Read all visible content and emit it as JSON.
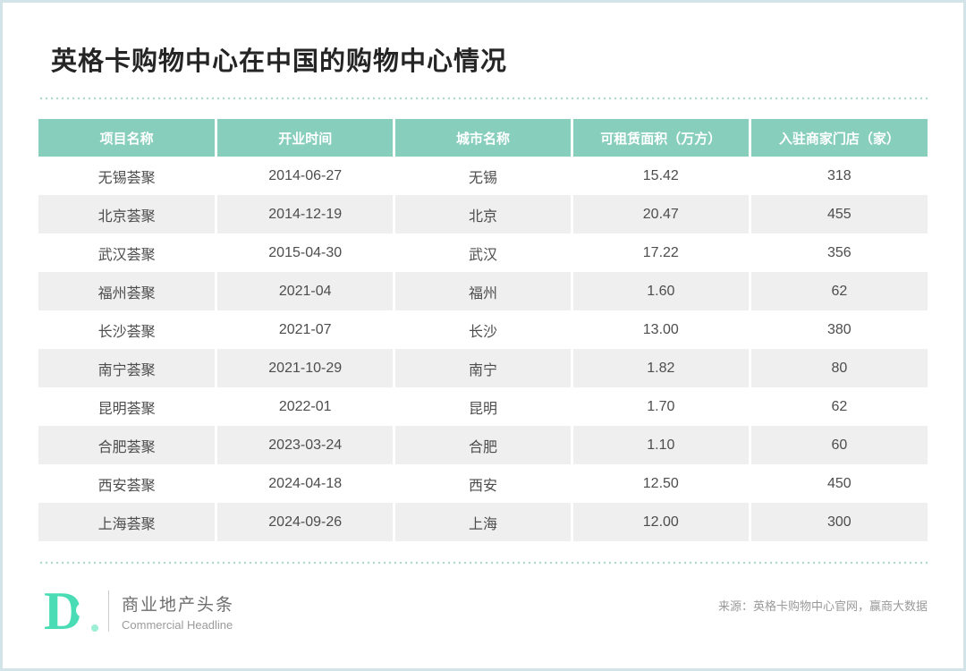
{
  "chart_data": {
    "type": "table",
    "title": "英格卡购物中心在中国的购物中心情况",
    "columns": [
      "项目名称",
      "开业时间",
      "城市名称",
      "可租赁面积（万方）",
      "入驻商家门店（家）"
    ],
    "rows": [
      [
        "无锡荟聚",
        "2014-06-27",
        "无锡",
        "15.42",
        "318"
      ],
      [
        "北京荟聚",
        "2014-12-19",
        "北京",
        "20.47",
        "455"
      ],
      [
        "武汉荟聚",
        "2015-04-30",
        "武汉",
        "17.22",
        "356"
      ],
      [
        "福州荟聚",
        "2021-04",
        "福州",
        "1.60",
        "62"
      ],
      [
        "长沙荟聚",
        "2021-07",
        "长沙",
        "13.00",
        "380"
      ],
      [
        "南宁荟聚",
        "2021-10-29",
        "南宁",
        "1.82",
        "80"
      ],
      [
        "昆明荟聚",
        "2022-01",
        "昆明",
        "1.70",
        "62"
      ],
      [
        "合肥荟聚",
        "2023-03-24",
        "合肥",
        "1.10",
        "60"
      ],
      [
        "西安荟聚",
        "2024-04-18",
        "西安",
        "12.50",
        "450"
      ],
      [
        "上海荟聚",
        "2024-09-26",
        "上海",
        "12.00",
        "300"
      ]
    ],
    "legend_position": "none",
    "grid": "alternating-row-shading"
  },
  "footer": {
    "logo_letter": "D",
    "brand_cn": "商业地产头条",
    "brand_en": "Commercial Headline",
    "source": "来源：英格卡购物中心官网，赢商大数据"
  },
  "colors": {
    "accent": "#4adcb4",
    "header_bg": "#87cebc",
    "row_alt_bg": "#f0eff0",
    "dotted": "#aedbd0",
    "page_border": "#d3e4e8",
    "cell_text": "#4d4d4d"
  }
}
